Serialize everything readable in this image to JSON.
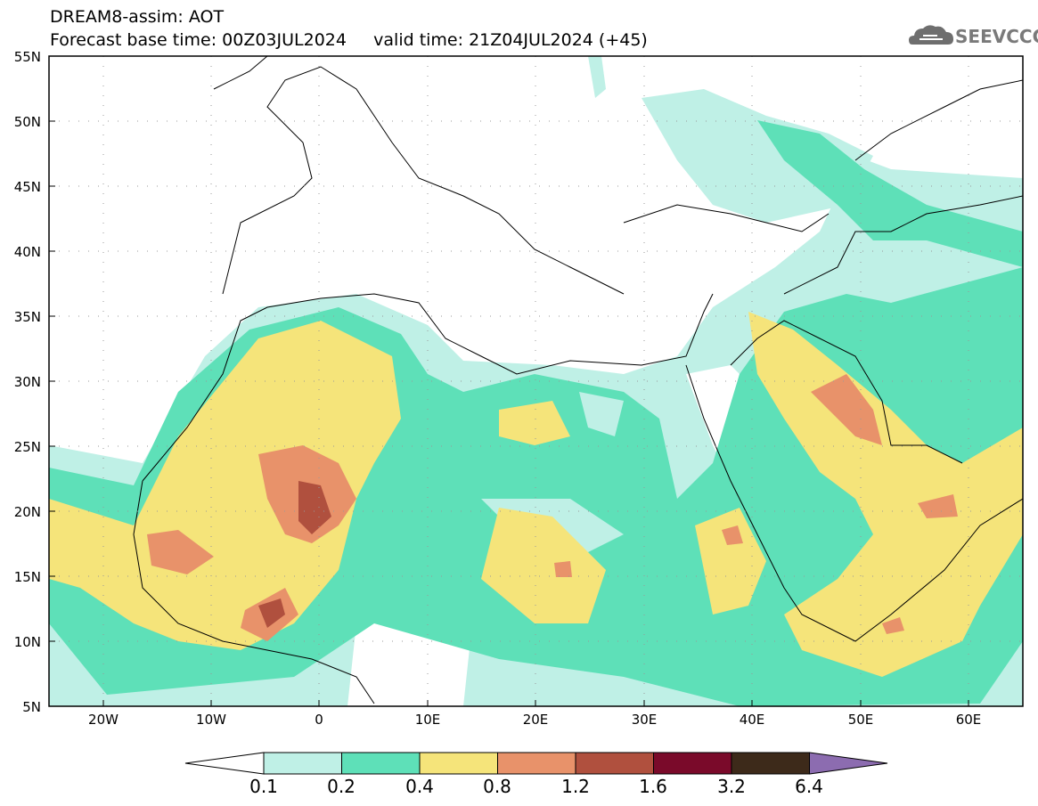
{
  "header": {
    "title_line1": "DREAM8-assim: AOT",
    "title_line2": "Forecast base time: 00Z03JUL2024     valid time: 21Z04JUL2024 (+45)",
    "logo_text": "SEEVCCC"
  },
  "map": {
    "lon_range": [
      -25,
      65
    ],
    "lat_range": [
      5,
      55
    ],
    "lat_ticks": [
      "55N",
      "50N",
      "45N",
      "40N",
      "35N",
      "30N",
      "25N",
      "20N",
      "15N",
      "10N",
      "5N"
    ],
    "lon_ticks": [
      "20W",
      "10W",
      "0",
      "10E",
      "20E",
      "30E",
      "40E",
      "50E",
      "60E"
    ],
    "field": "Aerosol optical thickness (dust)"
  },
  "colorbar": {
    "levels": [
      "0.1",
      "0.2",
      "0.4",
      "0.8",
      "1.2",
      "1.6",
      "3.2",
      "6.4"
    ],
    "colors": [
      "#ffffff",
      "#bff0e6",
      "#5ee0b8",
      "#f5e47a",
      "#e8926a",
      "#b0503e",
      "#7a0a2a",
      "#3d2a1a",
      "#8c6cb0"
    ]
  }
}
